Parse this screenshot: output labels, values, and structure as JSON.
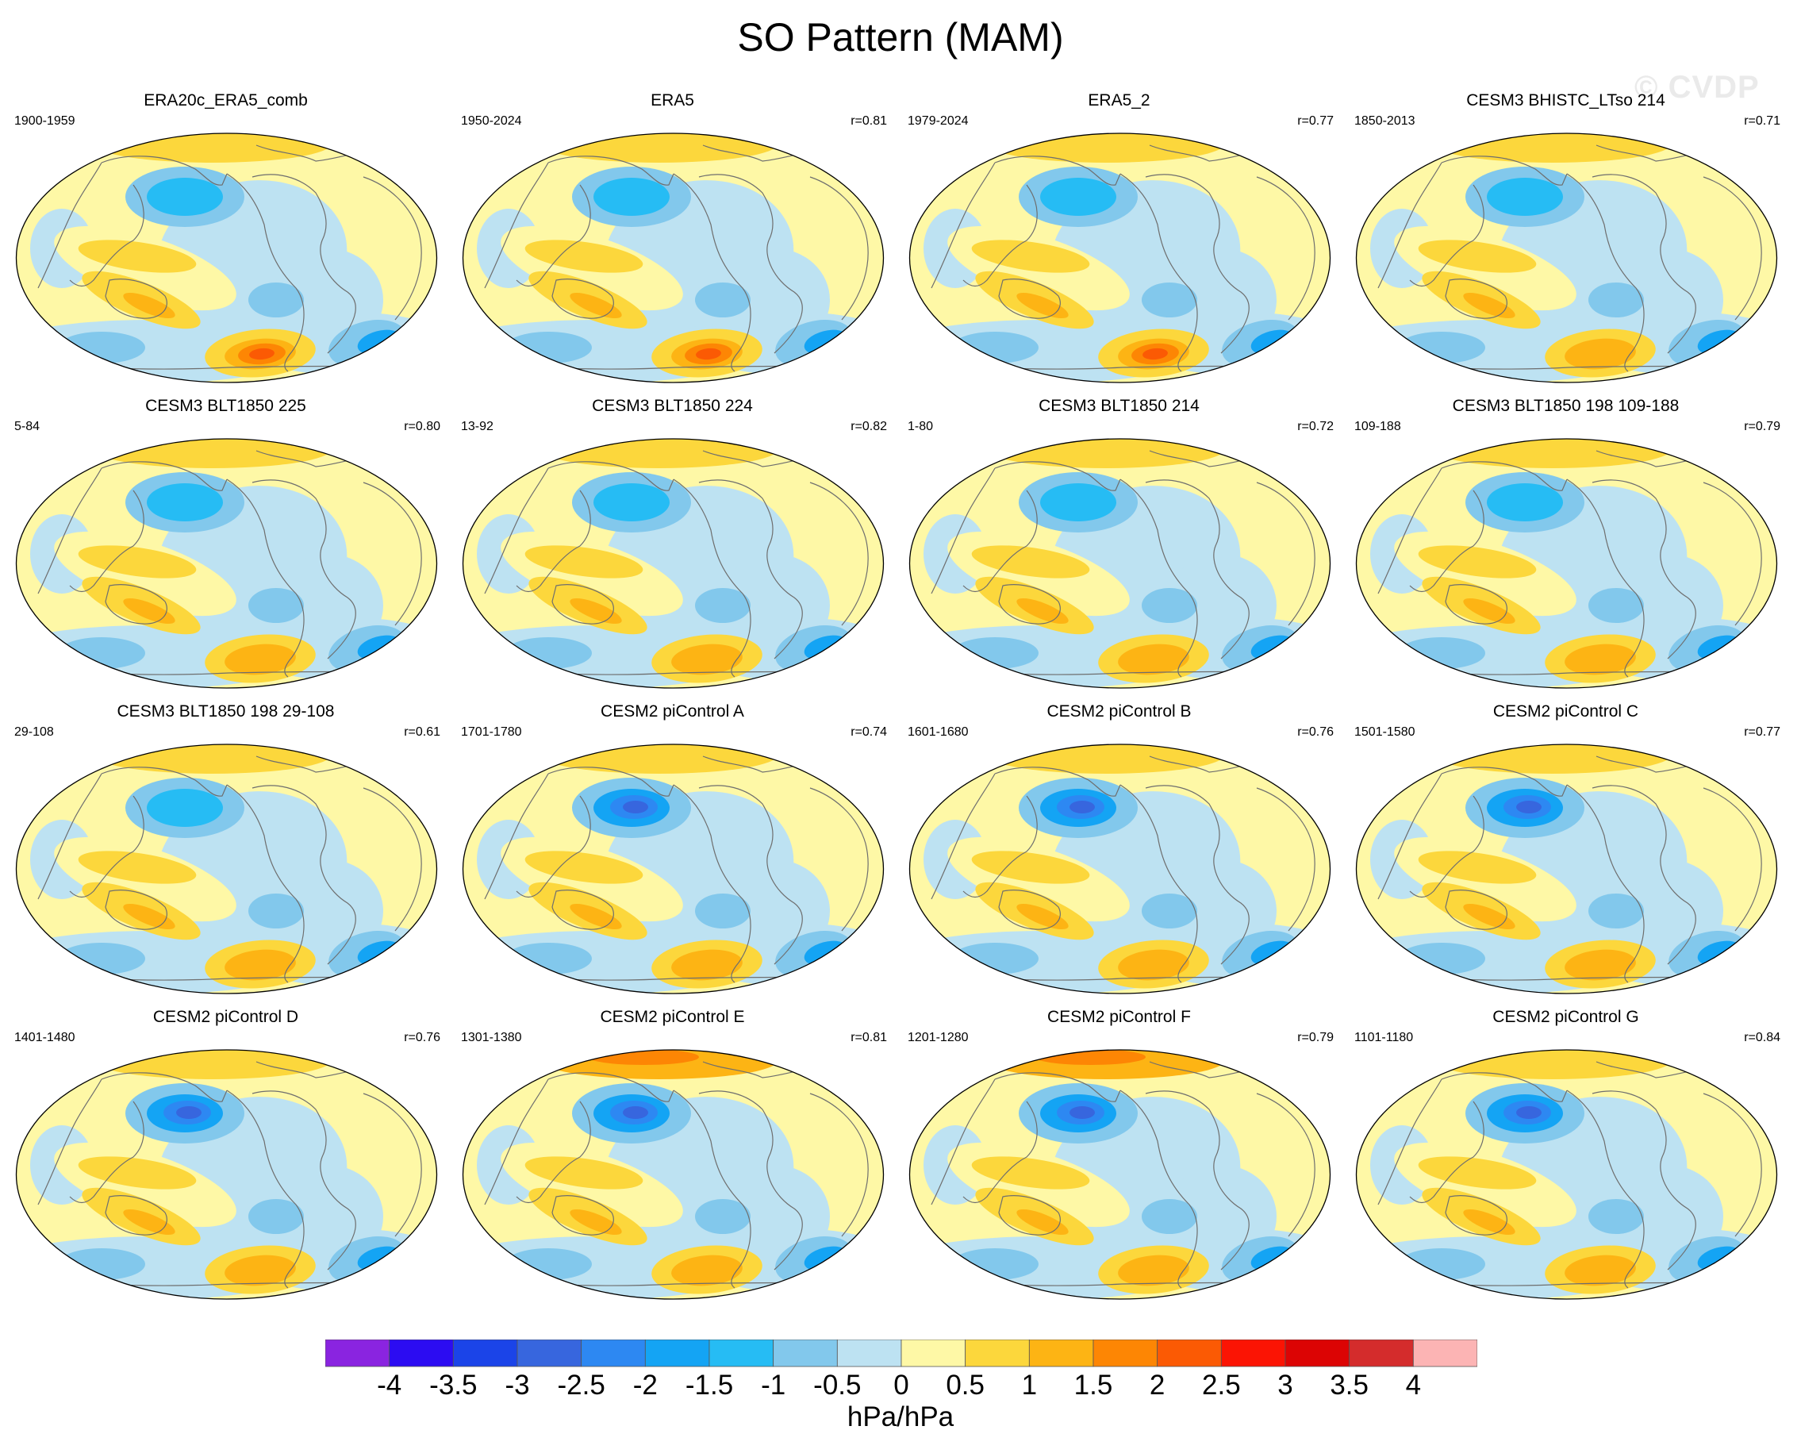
{
  "title": "SO Pattern (MAM)",
  "watermark": "© CVDP",
  "panels": [
    {
      "title": "ERA20c_ERA5_comb",
      "years": "1900-1959",
      "r": ""
    },
    {
      "title": "ERA5",
      "years": "1950-2024",
      "r": "r=0.81"
    },
    {
      "title": "ERA5_2",
      "years": "1979-2024",
      "r": "r=0.77"
    },
    {
      "title": "CESM3 BHISTC_LTso 214",
      "years": "1850-2013",
      "r": "r=0.71"
    },
    {
      "title": "CESM3 BLT1850 225",
      "years": "5-84",
      "r": "r=0.80"
    },
    {
      "title": "CESM3 BLT1850 224",
      "years": "13-92",
      "r": "r=0.82"
    },
    {
      "title": "CESM3 BLT1850 214",
      "years": "1-80",
      "r": "r=0.72"
    },
    {
      "title": "CESM3 BLT1850 198 109-188",
      "years": "109-188",
      "r": "r=0.79"
    },
    {
      "title": "CESM3 BLT1850 198 29-108",
      "years": "29-108",
      "r": "r=0.61"
    },
    {
      "title": "CESM2 piControl A",
      "years": "1701-1780",
      "r": "r=0.74"
    },
    {
      "title": "CESM2 piControl B",
      "years": "1601-1680",
      "r": "r=0.76"
    },
    {
      "title": "CESM2 piControl C",
      "years": "1501-1580",
      "r": "r=0.77"
    },
    {
      "title": "CESM2 piControl D",
      "years": "1401-1480",
      "r": "r=0.76"
    },
    {
      "title": "CESM2 piControl E",
      "years": "1301-1380",
      "r": "r=0.81"
    },
    {
      "title": "CESM2 piControl F",
      "years": "1201-1280",
      "r": "r=0.79"
    },
    {
      "title": "CESM2 piControl G",
      "years": "1101-1180",
      "r": "r=0.84"
    }
  ],
  "colorbar": {
    "labels": [
      "-4",
      "-3.5",
      "-3",
      "-2.5",
      "-2",
      "-1.5",
      "-1",
      "-0.5",
      "0",
      "0.5",
      "1",
      "1.5",
      "2",
      "2.5",
      "3",
      "3.5",
      "4"
    ],
    "colors": [
      "#8a24e0",
      "#2c0cf2",
      "#1b44e8",
      "#3766de",
      "#2d88f2",
      "#14a4f4",
      "#26bcf4",
      "#82c8ec",
      "#bde2f2",
      "#fef8a6",
      "#fcd73c",
      "#fdb414",
      "#fd8604",
      "#fb5a04",
      "#fb1404",
      "#dc0404",
      "#d42c2c",
      "#fcb4b4"
    ],
    "units": "hPa/hPa"
  }
}
